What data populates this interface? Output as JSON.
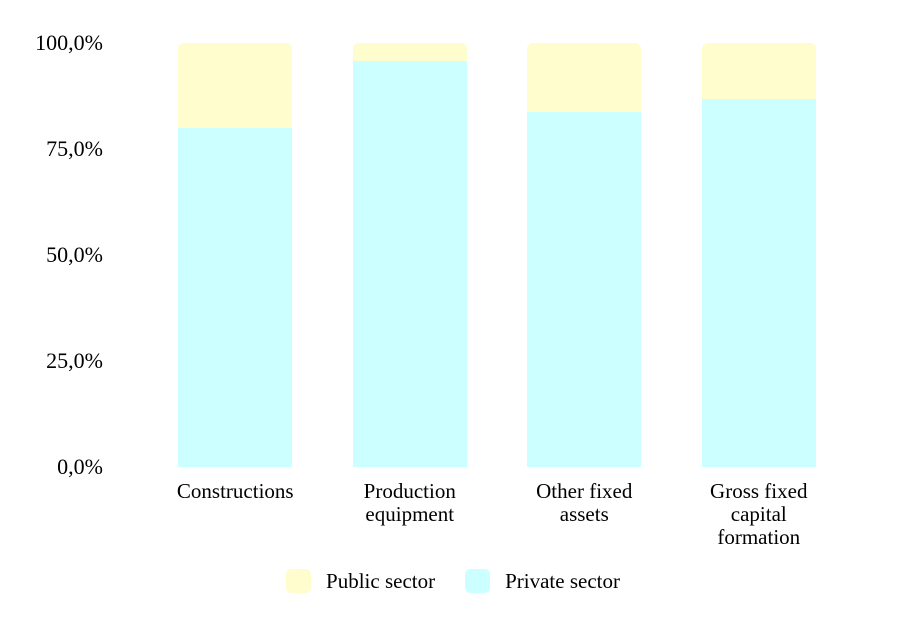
{
  "chart_data": {
    "type": "bar",
    "stacked": true,
    "percent_stacked": true,
    "title": "",
    "xlabel": "",
    "ylabel": "",
    "grid": false,
    "ylim": [
      0,
      100
    ],
    "categories": [
      "Constructions",
      "Production equipment",
      "Other fixed assets",
      "Gross fixed capital formation"
    ],
    "series": [
      {
        "name": "Public sector",
        "color": "#FFFCCD",
        "values": [
          20.1,
          4.2,
          16.2,
          13.3
        ]
      },
      {
        "name": "Private sector",
        "color": "#CCFFFF",
        "values": [
          79.9,
          95.8,
          83.8,
          86.7
        ]
      }
    ],
    "yticks": [
      {
        "value": 100,
        "label": "100,0%"
      },
      {
        "value": 75,
        "label": "75,0%"
      },
      {
        "value": 50,
        "label": "50,0%"
      },
      {
        "value": 25,
        "label": "25,0%"
      },
      {
        "value": 0,
        "label": "0,0%"
      }
    ],
    "legend_position": "bottom",
    "legend": [
      "Public sector",
      "Private sector"
    ]
  }
}
